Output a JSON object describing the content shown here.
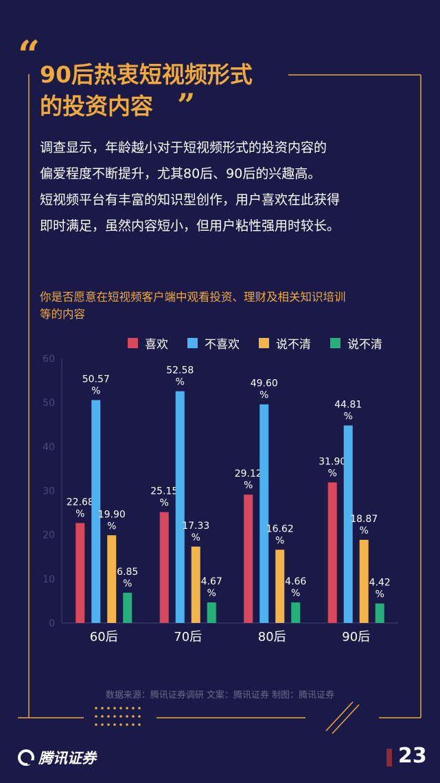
{
  "header": {
    "quote_open": "“",
    "quote_close": "”",
    "title_line1": "90后热衷短视频形式",
    "title_line2": "的投资内容"
  },
  "body": {
    "lines": [
      "调查显示，年龄越小对于短视频形式的投资内容的",
      "偏爱程度不断提升，尤其80后、90后的兴趣高。",
      "短视频平台有丰富的知识型创作，用户喜欢在此获得",
      "即时满足，虽然内容短小，但用户粘性强用时较长。"
    ]
  },
  "chart_data": {
    "type": "bar",
    "title_line1": "你是否愿意在短视频客户端中观看投资、理财及相关知识培训",
    "title_line2": "等的内容",
    "categories": [
      "60后",
      "70后",
      "80后",
      "90后"
    ],
    "series": [
      {
        "name": "喜欢",
        "color": "#d9475a",
        "values": [
          22.68,
          25.15,
          29.12,
          31.9
        ]
      },
      {
        "name": "不喜欢",
        "color": "#4db3f0",
        "values": [
          50.57,
          52.58,
          49.6,
          44.81
        ]
      },
      {
        "name": "说不清",
        "color": "#f3b44a",
        "values": [
          19.9,
          17.33,
          16.62,
          18.87
        ]
      },
      {
        "name": "说不清",
        "color": "#25b07a",
        "values": [
          6.85,
          4.67,
          4.66,
          4.42
        ]
      }
    ],
    "ylim": [
      0,
      60
    ],
    "yticks": [
      "0",
      "10",
      "20",
      "30",
      "40",
      "50",
      "60"
    ],
    "value_suffix": "%",
    "xlabel": "",
    "ylabel": ""
  },
  "footer": {
    "source": "数据来源：腾讯证券调研   文案：腾讯证券   制图：腾讯证券",
    "logo_text": "腾讯证券",
    "page_number": "23"
  },
  "colors": {
    "background": "#1a1a48",
    "accent": "#f0a93b"
  }
}
